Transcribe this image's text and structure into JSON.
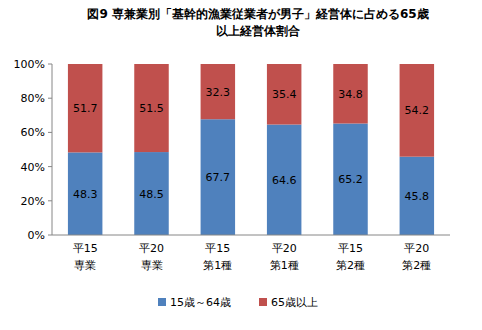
{
  "chart_data": {
    "type": "bar",
    "stacked": true,
    "data_labels": true,
    "grid": false,
    "legend": "bottom",
    "title": "図9  専兼業別「基幹的漁業従業者が男子」経営体に占める65歳\n以上経営体割合",
    "categories": [
      "平15\n専業",
      "平20\n専業",
      "平15\n第1種",
      "平20\n第1種",
      "平15\n第2種",
      "平20\n第2種"
    ],
    "series": [
      {
        "name": "15歳～64歳",
        "color": "#4f81bd",
        "values": [
          48.3,
          48.5,
          67.7,
          64.6,
          65.2,
          45.8
        ]
      },
      {
        "name": "65歳以上",
        "color": "#c0504d",
        "values": [
          51.7,
          51.5,
          32.3,
          35.4,
          34.8,
          54.2
        ]
      }
    ],
    "ylim": [
      0,
      100
    ],
    "yticks": [
      {
        "value": 0,
        "label": "0%"
      },
      {
        "value": 20,
        "label": "20%"
      },
      {
        "value": 40,
        "label": "40%"
      },
      {
        "value": 60,
        "label": "60%"
      },
      {
        "value": 80,
        "label": "80%"
      },
      {
        "value": 100,
        "label": "100%"
      }
    ]
  }
}
